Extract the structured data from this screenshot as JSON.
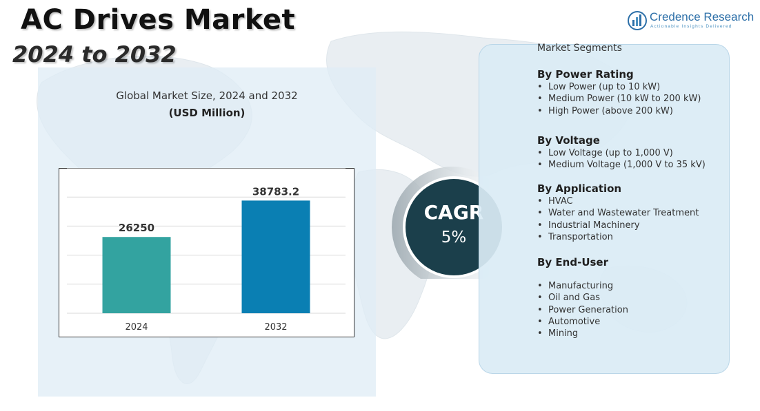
{
  "title": "AC Drives Market",
  "years_range": "2024 to 2032",
  "brand": {
    "name": "Credence Research",
    "tagline": "Actionable Insights Delivered",
    "icon": "bar-chart-logo-icon"
  },
  "chart_heading": "Global Market Size, 2024 and 2032",
  "chart_subheading": "(USD Million)",
  "chart_data": {
    "type": "bar",
    "categories": [
      "2024",
      "2032"
    ],
    "values": [
      26250,
      38783.2
    ],
    "value_labels": [
      "26250",
      "38783.2"
    ],
    "colors": [
      "#33a3a0",
      "#0a7fb3"
    ],
    "ylim": [
      0,
      50000
    ],
    "grid": true,
    "title": "Global Market Size, 2024 and 2032",
    "ylabel": "(USD Million)",
    "xlabel": ""
  },
  "cagr": {
    "label": "CAGR",
    "value": "5%"
  },
  "segments": {
    "title": "Market Segments",
    "groups": [
      {
        "heading": "By Power Rating",
        "items": [
          "Low Power (up to 10 kW)",
          "Medium Power (10 kW to 200 kW)",
          "High Power (above 200 kW)"
        ]
      },
      {
        "heading": "By Voltage",
        "items": [
          "Low Voltage (up to 1,000 V)",
          "Medium Voltage (1,000 V to 35 kV)"
        ]
      },
      {
        "heading": "By Application",
        "items": [
          "HVAC",
          "Water and Wastewater Treatment",
          "Industrial Machinery",
          "Transportation"
        ]
      },
      {
        "heading": "By End-User",
        "items": [
          "Manufacturing",
          "Oil and Gas",
          "Power Generation",
          "Automotive",
          "Mining"
        ]
      }
    ]
  },
  "colors": {
    "cagr_circle": "#1b3f4b",
    "panel": "#dcebf5",
    "title": "#111111"
  }
}
